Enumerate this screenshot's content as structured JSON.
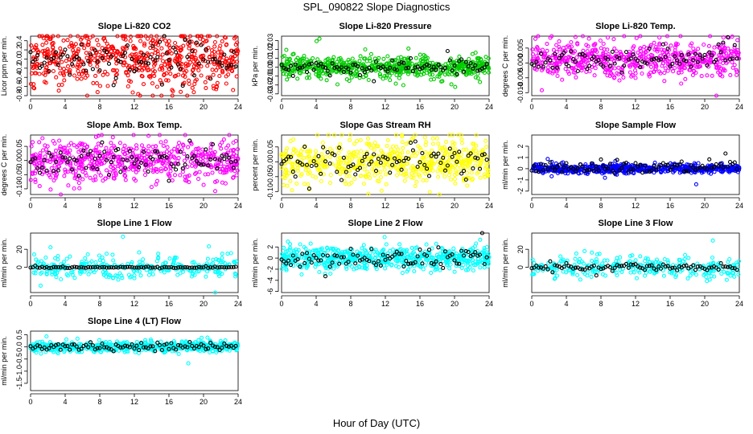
{
  "figure": {
    "title": "SPL_090822  Slope Diagnostics",
    "xlabel": "Hour of Day (UTC)"
  },
  "chart_data": [
    {
      "type": "scatter",
      "title": "Slope Li-820 CO2",
      "ylabel": "Licor ppm per min.",
      "xlabel": "",
      "x_ticks": [
        "0",
        "4",
        "8",
        "12",
        "16",
        "20",
        "24"
      ],
      "xlim": [
        0,
        24
      ],
      "y_ticks": [
        "-0.8",
        "-0.6",
        "-0.4",
        "-0.2",
        "0.0",
        "0.2",
        "0.4"
      ],
      "ylim": [
        -0.8,
        0.5
      ],
      "colors": {
        "points": "#ff0000",
        "hourly": "#000000"
      },
      "series": [
        {
          "color": "#ff0000",
          "center": 0.0,
          "spread": 0.3,
          "n": 620
        },
        {
          "color": "#000000",
          "center": 0.0,
          "spread": 0.2,
          "n": 90
        }
      ]
    },
    {
      "type": "scatter",
      "title": "Slope Li-820 Pressure",
      "ylabel": "kPa per min.",
      "xlabel": "",
      "x_ticks": [
        "0",
        "4",
        "8",
        "12",
        "16",
        "20",
        "24"
      ],
      "xlim": [
        0,
        24
      ],
      "y_ticks": [
        "-0.03",
        "-0.02",
        "-0.01",
        "0.00",
        "0.01",
        "0.02",
        "0.03"
      ],
      "ylim": [
        -0.032,
        0.035
      ],
      "colors": {
        "points": "#00cc00",
        "hourly": "#000000"
      },
      "series": [
        {
          "color": "#00cc00",
          "center": 0.0,
          "spread": 0.006,
          "n": 620
        },
        {
          "color": "#000000",
          "center": 0.0,
          "spread": 0.004,
          "n": 90
        }
      ]
    },
    {
      "type": "scatter",
      "title": "Slope Li-820 Temp.",
      "ylabel": "degrees C per min.",
      "xlabel": "",
      "x_ticks": [
        "0",
        "4",
        "8",
        "12",
        "16",
        "20",
        "24"
      ],
      "xlim": [
        0,
        24
      ],
      "y_ticks": [
        "-0.010",
        "-0.005",
        "0.000",
        "0.005"
      ],
      "ylim": [
        -0.011,
        0.009
      ],
      "colors": {
        "points": "#ff00ff",
        "hourly": "#000000"
      },
      "series": [
        {
          "color": "#ff00ff",
          "center": 0.001,
          "spread": 0.003,
          "n": 600
        },
        {
          "color": "#000000",
          "center": 0.001,
          "spread": 0.002,
          "n": 90
        }
      ]
    },
    {
      "type": "scatter",
      "title": "Slope Amb. Box Temp.",
      "ylabel": "degrees C per min.",
      "xlabel": "",
      "x_ticks": [
        "0",
        "4",
        "8",
        "12",
        "16",
        "20",
        "24"
      ],
      "xlim": [
        0,
        24
      ],
      "y_ticks": [
        "-0.10",
        "-0.05",
        "0.00",
        "0.05"
      ],
      "ylim": [
        -0.12,
        0.09
      ],
      "colors": {
        "points": "#ff00ff",
        "hourly": "#000000"
      },
      "series": [
        {
          "color": "#ff00ff",
          "center": 0.0,
          "spread": 0.035,
          "n": 600
        },
        {
          "color": "#000000",
          "center": 0.0,
          "spread": 0.025,
          "n": 90
        }
      ]
    },
    {
      "type": "scatter",
      "title": "Slope Gas Stream RH",
      "ylabel": "percent per min.",
      "xlabel": "",
      "x_ticks": [
        "0",
        "4",
        "8",
        "12",
        "16",
        "20",
        "24"
      ],
      "xlim": [
        0,
        24
      ],
      "y_ticks": [
        "-0.10",
        "-0.05",
        "0.00",
        "0.05"
      ],
      "ylim": [
        -0.11,
        0.09
      ],
      "colors": {
        "points": "#ffff00",
        "hourly": "#000000"
      },
      "series": [
        {
          "color": "#ffff00",
          "center": 0.0,
          "spread": 0.035,
          "n": 600
        },
        {
          "color": "#000000",
          "center": 0.0,
          "spread": 0.025,
          "n": 90
        }
      ]
    },
    {
      "type": "scatter",
      "title": "Slope Sample Flow",
      "ylabel": "ml/min per min.",
      "xlabel": "",
      "x_ticks": [
        "0",
        "4",
        "8",
        "12",
        "16",
        "20",
        "24"
      ],
      "xlim": [
        0,
        24
      ],
      "y_ticks": [
        "-2",
        "-1",
        "0",
        "1",
        "2"
      ],
      "ylim": [
        -2.3,
        3.0
      ],
      "colors": {
        "points": "#0000ff",
        "hourly": "#000000"
      },
      "series": [
        {
          "color": "#0000ff",
          "center": 0.0,
          "spread": 0.2,
          "n": 600
        },
        {
          "color": "#000000",
          "center": 0.1,
          "spread": 0.3,
          "n": 90
        }
      ]
    },
    {
      "type": "scatter",
      "title": "Slope Line 1 Flow",
      "ylabel": "ml/min per min.",
      "xlabel": "",
      "x_ticks": [
        "0",
        "4",
        "8",
        "12",
        "16",
        "20",
        "24"
      ],
      "xlim": [
        0,
        24
      ],
      "y_ticks": [
        "0",
        "20"
      ],
      "ylim": [
        -28,
        38
      ],
      "colors": {
        "points": "#00ffff",
        "hourly": "#000000"
      },
      "series": [
        {
          "color": "#00ffff",
          "center": 0.0,
          "spread": 6,
          "n": 300
        },
        {
          "color": "#000000",
          "center": 0.0,
          "spread": 0.5,
          "n": 90
        }
      ]
    },
    {
      "type": "scatter",
      "title": "Slope Line 2 Flow",
      "ylabel": "ml/min per min.",
      "xlabel": "",
      "x_ticks": [
        "0",
        "4",
        "8",
        "12",
        "16",
        "20",
        "24"
      ],
      "xlim": [
        0,
        24
      ],
      "y_ticks": [
        "-6",
        "-4",
        "-2",
        "0",
        "2"
      ],
      "ylim": [
        -6.2,
        4.5
      ],
      "colors": {
        "points": "#00ffff",
        "hourly": "#000000"
      },
      "series": [
        {
          "color": "#00ffff",
          "center": 0.0,
          "spread": 1.0,
          "n": 600
        },
        {
          "color": "#000000",
          "center": 0.0,
          "spread": 0.9,
          "n": 90
        }
      ]
    },
    {
      "type": "scatter",
      "title": "Slope Line 3 Flow",
      "ylabel": "ml/min per min.",
      "xlabel": "",
      "x_ticks": [
        "0",
        "4",
        "8",
        "12",
        "16",
        "20",
        "24"
      ],
      "xlim": [
        0,
        24
      ],
      "y_ticks": [
        "0",
        "20"
      ],
      "ylim": [
        -28,
        38
      ],
      "colors": {
        "points": "#00ffff",
        "hourly": "#000000"
      },
      "series": [
        {
          "color": "#00ffff",
          "center": 0.0,
          "spread": 6,
          "n": 300
        },
        {
          "color": "#000000",
          "center": 0.0,
          "spread": 2,
          "n": 90
        }
      ]
    },
    {
      "type": "scatter",
      "title": "Slope Line 4 (LT) Flow",
      "ylabel": "ml/min per min.",
      "xlabel": "",
      "x_ticks": [
        "0",
        "4",
        "8",
        "12",
        "16",
        "20",
        "24"
      ],
      "xlim": [
        0,
        24
      ],
      "y_ticks": [
        "-1.5",
        "-1.0",
        "-0.5",
        "0.0",
        "0.5"
      ],
      "ylim": [
        -1.8,
        0.65
      ],
      "colors": {
        "points": "#00ffff",
        "hourly": "#000000"
      },
      "series": [
        {
          "color": "#00ffff",
          "center": 0.0,
          "spread": 0.1,
          "n": 600
        },
        {
          "color": "#000000",
          "center": 0.0,
          "spread": 0.08,
          "n": 90
        }
      ]
    }
  ]
}
